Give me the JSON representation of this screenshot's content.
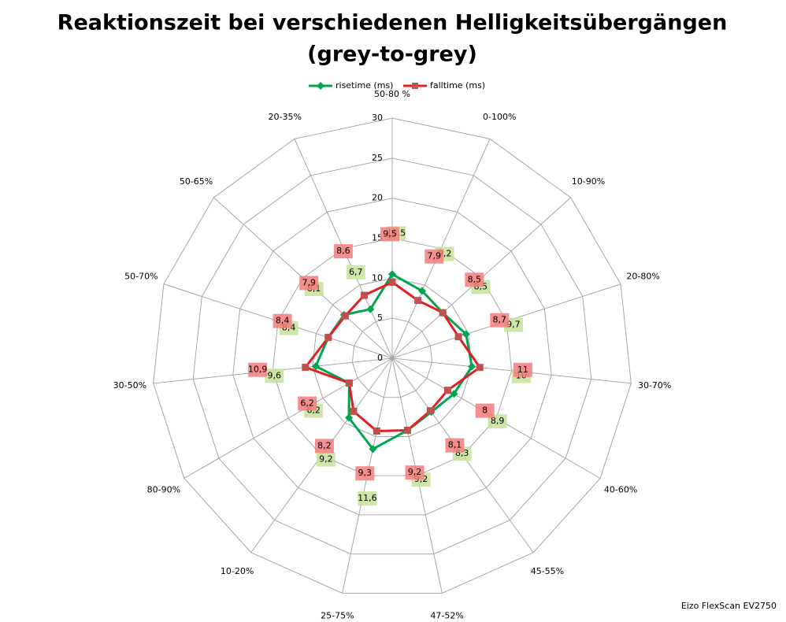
{
  "chart_data": {
    "type": "radar",
    "title": [
      "Reaktionszeit bei verschiedenen Helligkeitsübergängen",
      "(grey-to-grey)"
    ],
    "categories": [
      "50-80 %",
      "0-100%",
      "10-90%",
      "20-80%",
      "30-70%",
      "40-60%",
      "45-55%",
      "47-52%",
      "25-75%",
      "10-20%",
      "80-90%",
      "30-50%",
      "50-70%",
      "50-65%",
      "20-35%"
    ],
    "series": [
      {
        "name": "risetime (ms)",
        "color": "#00a550",
        "marker": "diamond",
        "label_color": "#c6e39a",
        "values": [
          10.5,
          9.2,
          8.5,
          9.7,
          10,
          8.9,
          8.3,
          9.2,
          11.6,
          9.2,
          6.2,
          9.6,
          8.4,
          8.1,
          6.7
        ],
        "value_labels": [
          "10,5",
          "9,2",
          "8,5",
          "9,7",
          "10",
          "8,9",
          "8,3",
          "9,2",
          "11,6",
          "9,2",
          "6,2",
          "9,6",
          "8,4",
          "8,1",
          "6,7"
        ]
      },
      {
        "name": "falltime (ms)",
        "color": "#e31e24",
        "marker": "square",
        "marker_color": "#c0504d",
        "label_color": "#f47c7c",
        "values": [
          9.5,
          7.9,
          8.5,
          8.7,
          11,
          8,
          8.1,
          9.2,
          9.3,
          8.2,
          6.2,
          10.9,
          8.4,
          7.9,
          8.6
        ],
        "value_labels": [
          "9,5",
          "7,9",
          "8,5",
          "8,7",
          "11",
          "8",
          "8,1",
          "9,2",
          "9,3",
          "8,2",
          "6,2",
          "10,9",
          "8,4",
          "7,9",
          "8,6"
        ]
      }
    ],
    "ylim": [
      0,
      30
    ],
    "yticks": [
      0,
      5,
      10,
      15,
      20,
      25,
      30
    ],
    "grid": true,
    "legend": "top",
    "source": "Eizo FlexScan EV2750"
  }
}
